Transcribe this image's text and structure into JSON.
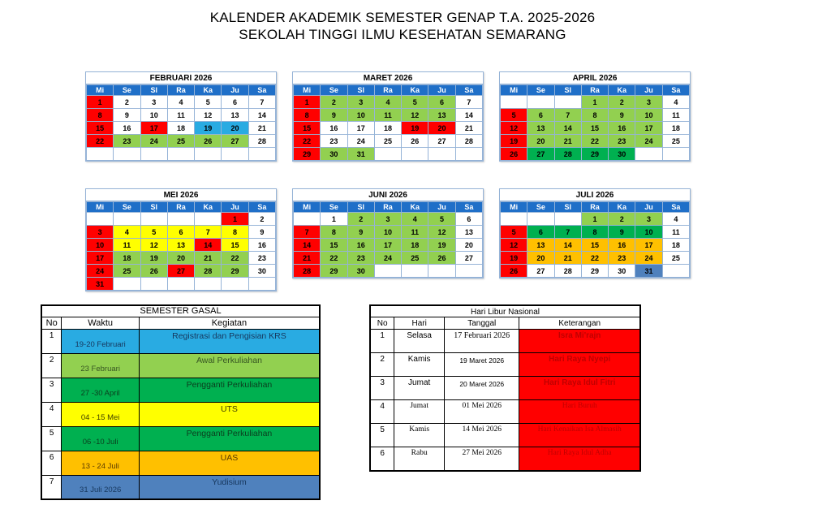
{
  "title": {
    "line1": "KALENDER AKADEMIK SEMESTER GENAP T.A. 2025-2026",
    "line2": "SEKOLAH TINGGI ILMU KESEHATAN SEMARANG"
  },
  "day_headers": [
    "Mi",
    "Se",
    "Sl",
    "Ra",
    "Ka",
    "Ju",
    "Sa"
  ],
  "colors": {
    "red": "#FF0000",
    "light_green": "#92D050",
    "dark_green": "#00B050",
    "yellow": "#FFFF00",
    "orange": "#FFC000",
    "cyan": "#29ABE2",
    "steel_blue": "#4F81BD",
    "header_blue": "#1F6FC8",
    "holiday_text": "#C00000"
  },
  "calendars": [
    {
      "name": "FEBRUARI 2026",
      "weeks": [
        [
          {
            "d": 1,
            "c": "red"
          },
          {
            "d": 2
          },
          {
            "d": 3
          },
          {
            "d": 4
          },
          {
            "d": 5
          },
          {
            "d": 6
          },
          {
            "d": 7
          }
        ],
        [
          {
            "d": 8,
            "c": "red"
          },
          {
            "d": 9
          },
          {
            "d": 10
          },
          {
            "d": 11
          },
          {
            "d": 12
          },
          {
            "d": 13
          },
          {
            "d": 14
          }
        ],
        [
          {
            "d": 15,
            "c": "red"
          },
          {
            "d": 16
          },
          {
            "d": 17,
            "c": "red"
          },
          {
            "d": 18
          },
          {
            "d": 19,
            "c": "cyan"
          },
          {
            "d": 20,
            "c": "cyan"
          },
          {
            "d": 21
          }
        ],
        [
          {
            "d": 22,
            "c": "red"
          },
          {
            "d": 23,
            "c": "light_green"
          },
          {
            "d": 24,
            "c": "light_green"
          },
          {
            "d": 25,
            "c": "light_green"
          },
          {
            "d": 26,
            "c": "light_green"
          },
          {
            "d": 27,
            "c": "light_green"
          },
          {
            "d": 28
          }
        ],
        [
          {
            "d": ""
          },
          {
            "d": ""
          },
          {
            "d": ""
          },
          {
            "d": ""
          },
          {
            "d": ""
          },
          {
            "d": ""
          },
          {
            "d": ""
          }
        ]
      ]
    },
    {
      "name": "MARET 2026",
      "weeks": [
        [
          {
            "d": 1,
            "c": "red"
          },
          {
            "d": 2,
            "c": "light_green"
          },
          {
            "d": 3,
            "c": "light_green"
          },
          {
            "d": 4,
            "c": "light_green"
          },
          {
            "d": 5,
            "c": "light_green"
          },
          {
            "d": 6,
            "c": "light_green"
          },
          {
            "d": 7
          }
        ],
        [
          {
            "d": 8,
            "c": "red"
          },
          {
            "d": 9,
            "c": "light_green"
          },
          {
            "d": 10,
            "c": "light_green"
          },
          {
            "d": 11,
            "c": "light_green"
          },
          {
            "d": 12,
            "c": "light_green"
          },
          {
            "d": 13,
            "c": "light_green"
          },
          {
            "d": 14
          }
        ],
        [
          {
            "d": 15,
            "c": "red"
          },
          {
            "d": 16
          },
          {
            "d": 17
          },
          {
            "d": 18
          },
          {
            "d": 19,
            "c": "red"
          },
          {
            "d": 20,
            "c": "red"
          },
          {
            "d": 21
          }
        ],
        [
          {
            "d": 22,
            "c": "red"
          },
          {
            "d": 23
          },
          {
            "d": 24
          },
          {
            "d": 25
          },
          {
            "d": 26
          },
          {
            "d": 27
          },
          {
            "d": 28
          }
        ],
        [
          {
            "d": 29,
            "c": "red"
          },
          {
            "d": 30,
            "c": "light_green"
          },
          {
            "d": 31,
            "c": "light_green"
          },
          {
            "d": ""
          },
          {
            "d": ""
          },
          {
            "d": ""
          },
          {
            "d": ""
          }
        ]
      ]
    },
    {
      "name": "APRIL 2026",
      "weeks": [
        [
          {
            "d": ""
          },
          {
            "d": ""
          },
          {
            "d": ""
          },
          {
            "d": 1,
            "c": "light_green"
          },
          {
            "d": 2,
            "c": "light_green"
          },
          {
            "d": 3,
            "c": "light_green"
          },
          {
            "d": 4
          }
        ],
        [
          {
            "d": 5,
            "c": "red"
          },
          {
            "d": 6,
            "c": "light_green"
          },
          {
            "d": 7,
            "c": "light_green"
          },
          {
            "d": 8,
            "c": "light_green"
          },
          {
            "d": 9,
            "c": "light_green"
          },
          {
            "d": 10,
            "c": "light_green"
          },
          {
            "d": 11
          }
        ],
        [
          {
            "d": 12,
            "c": "red"
          },
          {
            "d": 13,
            "c": "light_green"
          },
          {
            "d": 14,
            "c": "light_green"
          },
          {
            "d": 15,
            "c": "light_green"
          },
          {
            "d": 16,
            "c": "light_green"
          },
          {
            "d": 17,
            "c": "light_green"
          },
          {
            "d": 18
          }
        ],
        [
          {
            "d": 19,
            "c": "red"
          },
          {
            "d": 20,
            "c": "light_green"
          },
          {
            "d": 21,
            "c": "light_green"
          },
          {
            "d": 22,
            "c": "light_green"
          },
          {
            "d": 23,
            "c": "light_green"
          },
          {
            "d": 24,
            "c": "light_green"
          },
          {
            "d": 25
          }
        ],
        [
          {
            "d": 26,
            "c": "red"
          },
          {
            "d": 27,
            "c": "dark_green"
          },
          {
            "d": 28,
            "c": "dark_green"
          },
          {
            "d": 29,
            "c": "dark_green"
          },
          {
            "d": 30,
            "c": "dark_green"
          },
          {
            "d": ""
          },
          {
            "d": ""
          }
        ]
      ]
    },
    {
      "name": "MEI 2026",
      "weeks": [
        [
          {
            "d": ""
          },
          {
            "d": ""
          },
          {
            "d": ""
          },
          {
            "d": ""
          },
          {
            "d": ""
          },
          {
            "d": 1,
            "c": "red"
          },
          {
            "d": 2
          }
        ],
        [
          {
            "d": 3,
            "c": "red"
          },
          {
            "d": 4,
            "c": "yellow"
          },
          {
            "d": 5,
            "c": "yellow"
          },
          {
            "d": 6,
            "c": "yellow"
          },
          {
            "d": 7,
            "c": "yellow"
          },
          {
            "d": 8,
            "c": "yellow"
          },
          {
            "d": 9
          }
        ],
        [
          {
            "d": 10,
            "c": "red"
          },
          {
            "d": 11,
            "c": "yellow"
          },
          {
            "d": 12,
            "c": "yellow"
          },
          {
            "d": 13,
            "c": "yellow"
          },
          {
            "d": 14,
            "c": "red"
          },
          {
            "d": 15,
            "c": "yellow"
          },
          {
            "d": 16
          }
        ],
        [
          {
            "d": 17,
            "c": "red"
          },
          {
            "d": 18,
            "c": "light_green"
          },
          {
            "d": 19,
            "c": "light_green"
          },
          {
            "d": 20,
            "c": "light_green"
          },
          {
            "d": 21,
            "c": "light_green"
          },
          {
            "d": 22,
            "c": "light_green"
          },
          {
            "d": 23
          }
        ],
        [
          {
            "d": 24,
            "c": "red"
          },
          {
            "d": 25,
            "c": "light_green"
          },
          {
            "d": 26,
            "c": "light_green"
          },
          {
            "d": 27,
            "c": "red"
          },
          {
            "d": 28,
            "c": "light_green"
          },
          {
            "d": 29,
            "c": "light_green"
          },
          {
            "d": 30
          }
        ],
        [
          {
            "d": 31,
            "c": "red"
          },
          {
            "d": ""
          },
          {
            "d": ""
          },
          {
            "d": ""
          },
          {
            "d": ""
          },
          {
            "d": ""
          },
          {
            "d": ""
          }
        ]
      ]
    },
    {
      "name": "JUNI 2026",
      "weeks": [
        [
          {
            "d": ""
          },
          {
            "d": 1
          },
          {
            "d": 2,
            "c": "light_green"
          },
          {
            "d": 3,
            "c": "light_green"
          },
          {
            "d": 4,
            "c": "light_green"
          },
          {
            "d": 5,
            "c": "light_green"
          },
          {
            "d": 6
          }
        ],
        [
          {
            "d": 7,
            "c": "red"
          },
          {
            "d": 8,
            "c": "light_green"
          },
          {
            "d": 9,
            "c": "light_green"
          },
          {
            "d": 10,
            "c": "light_green"
          },
          {
            "d": 11,
            "c": "light_green"
          },
          {
            "d": 12,
            "c": "light_green"
          },
          {
            "d": 13
          }
        ],
        [
          {
            "d": 14,
            "c": "red"
          },
          {
            "d": 15,
            "c": "light_green"
          },
          {
            "d": 16,
            "c": "light_green"
          },
          {
            "d": 17,
            "c": "light_green"
          },
          {
            "d": 18,
            "c": "light_green"
          },
          {
            "d": 19,
            "c": "light_green"
          },
          {
            "d": 20
          }
        ],
        [
          {
            "d": 21,
            "c": "red"
          },
          {
            "d": 22,
            "c": "light_green"
          },
          {
            "d": 23,
            "c": "light_green"
          },
          {
            "d": 24,
            "c": "light_green"
          },
          {
            "d": 25,
            "c": "light_green"
          },
          {
            "d": 26,
            "c": "light_green"
          },
          {
            "d": 27
          }
        ],
        [
          {
            "d": 28,
            "c": "red"
          },
          {
            "d": 29,
            "c": "light_green"
          },
          {
            "d": 30,
            "c": "light_green"
          },
          {
            "d": ""
          },
          {
            "d": ""
          },
          {
            "d": ""
          },
          {
            "d": ""
          }
        ]
      ]
    },
    {
      "name": "JULI 2026",
      "weeks": [
        [
          {
            "d": ""
          },
          {
            "d": ""
          },
          {
            "d": ""
          },
          {
            "d": 1,
            "c": "light_green"
          },
          {
            "d": 2,
            "c": "light_green"
          },
          {
            "d": 3,
            "c": "light_green"
          },
          {
            "d": 4
          }
        ],
        [
          {
            "d": 5,
            "c": "red"
          },
          {
            "d": 6,
            "c": "dark_green"
          },
          {
            "d": 7,
            "c": "dark_green"
          },
          {
            "d": 8,
            "c": "dark_green"
          },
          {
            "d": 9,
            "c": "dark_green"
          },
          {
            "d": 10,
            "c": "dark_green"
          },
          {
            "d": 11
          }
        ],
        [
          {
            "d": 12,
            "c": "red"
          },
          {
            "d": 13,
            "c": "orange"
          },
          {
            "d": 14,
            "c": "orange"
          },
          {
            "d": 15,
            "c": "orange"
          },
          {
            "d": 16,
            "c": "orange"
          },
          {
            "d": 17,
            "c": "orange"
          },
          {
            "d": 18
          }
        ],
        [
          {
            "d": 19,
            "c": "red"
          },
          {
            "d": 20,
            "c": "orange"
          },
          {
            "d": 21,
            "c": "orange"
          },
          {
            "d": 22,
            "c": "orange"
          },
          {
            "d": 23,
            "c": "orange"
          },
          {
            "d": 24,
            "c": "orange"
          },
          {
            "d": 25
          }
        ],
        [
          {
            "d": 26,
            "c": "red"
          },
          {
            "d": 27
          },
          {
            "d": 28
          },
          {
            "d": 29
          },
          {
            "d": 30
          },
          {
            "d": 31,
            "c": "steel_blue"
          },
          {
            "d": ""
          }
        ]
      ]
    }
  ],
  "semester_table": {
    "title": "SEMESTER GASAL",
    "headers": [
      "No",
      "Waktu",
      "Kegiatan"
    ],
    "rows": [
      {
        "no": "1",
        "waktu": "19-20 Februari",
        "kegiatan": "Registrasi dan Pengisian KRS",
        "color": "cyan",
        "fg": "#17375D"
      },
      {
        "no": "2",
        "waktu": "23 Februari",
        "kegiatan": "Awal Perkuliahan",
        "color": "light_green",
        "fg": "#375623"
      },
      {
        "no": "3",
        "waktu": "27 -30 April",
        "kegiatan": "Pengganti Perkuliahan",
        "color": "dark_green",
        "fg": "#0B3D1E"
      },
      {
        "no": "4",
        "waktu": "04 - 15 Mei",
        "kegiatan": "UTS",
        "color": "yellow",
        "fg": "#3F3F00"
      },
      {
        "no": "5",
        "waktu": "06 -10 Juli",
        "kegiatan": "Pengganti Perkuliahan",
        "color": "dark_green",
        "fg": "#0B3D1E"
      },
      {
        "no": "6",
        "waktu": "13 - 24 Juli",
        "kegiatan": "UAS",
        "color": "orange",
        "fg": "#5B3A00"
      },
      {
        "no": "7",
        "waktu": "31 Juli 2026",
        "kegiatan": "Yudisium",
        "color": "steel_blue",
        "fg": "#17375D"
      }
    ]
  },
  "holiday_table": {
    "title": "Hari Libur Nasional",
    "headers": [
      "No",
      "Hari",
      "Tanggal",
      "Keterangan"
    ],
    "rows": [
      {
        "no": "1",
        "hari": "Selasa",
        "tanggal": "17 Februari 2026",
        "keterangan": "Isra Mi'rajn"
      },
      {
        "no": "2",
        "hari": "Kamis",
        "tanggal": "19 Maret 2026",
        "keterangan": "Hari Raya Nyepi"
      },
      {
        "no": "3",
        "hari": "Jumat",
        "tanggal": "20 Maret 2026",
        "keterangan": "Hari Raya Idul Fitri"
      },
      {
        "no": "4",
        "hari": "Jumat",
        "tanggal": "01 Mei 2026",
        "keterangan": "Hari Buruh"
      },
      {
        "no": "5",
        "hari": "Kamis",
        "tanggal": "14 Mei 2026",
        "keterangan": "Hari Kenaikan Isa Almasih"
      },
      {
        "no": "6",
        "hari": "Rabu",
        "tanggal": "27 Mei 2026",
        "keterangan": "Hari Raya Idul Adha"
      }
    ]
  }
}
